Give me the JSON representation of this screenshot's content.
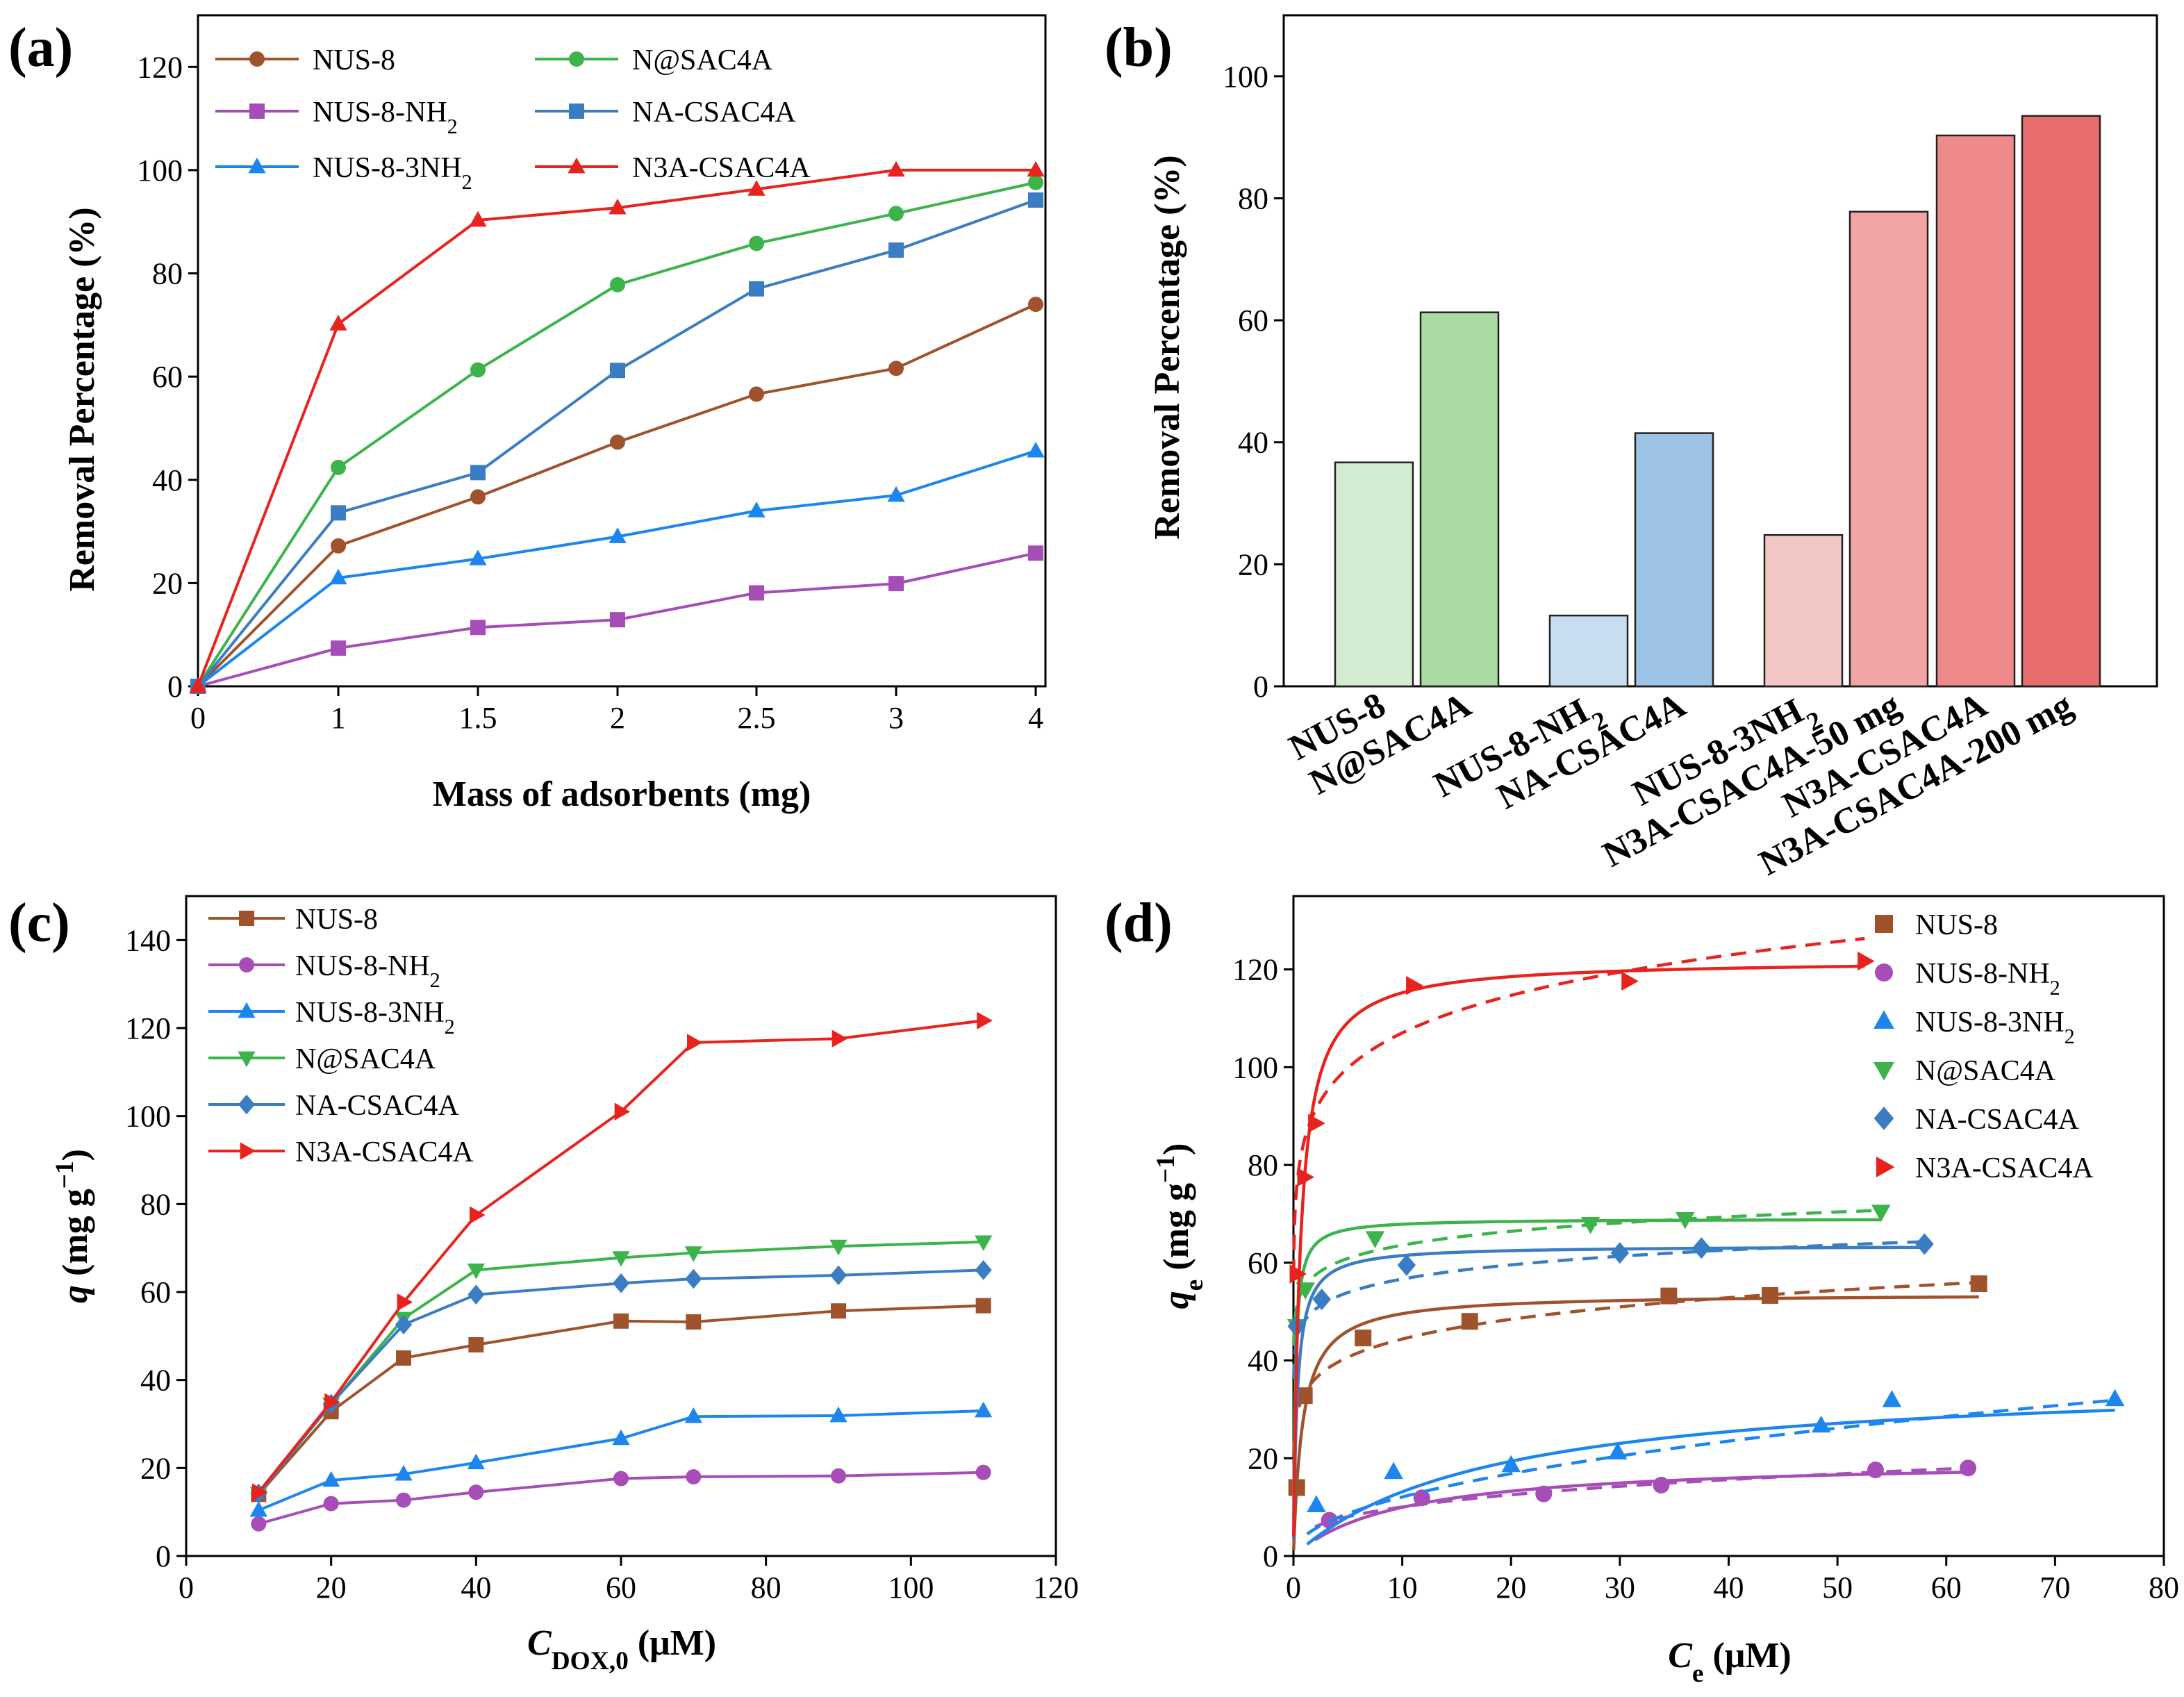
{
  "chart_data": [
    {
      "panel": "(a)",
      "type": "line",
      "xlabel": "Mass of adsorbents (mg)",
      "ylabel": "Removal Percentage (%)",
      "categories": [
        "0",
        "1",
        "1.5",
        "2",
        "2.5",
        "3",
        "4"
      ],
      "yticks": [
        0,
        20,
        40,
        60,
        80,
        100,
        120
      ],
      "ylim": [
        0,
        130
      ],
      "legend_position": "top-left",
      "series": [
        {
          "name": "NUS-8",
          "label": "NUS-8",
          "sub": "",
          "color": "#A0522D",
          "marker": "circle",
          "values": [
            0,
            27.2,
            36.7,
            47.3,
            56.6,
            61.6,
            74.0
          ]
        },
        {
          "name": "NUS-8-NH2",
          "label": "NUS-8-NH",
          "sub": "2",
          "color": "#A64DB8",
          "marker": "square",
          "values": [
            0,
            7.4,
            11.4,
            12.9,
            18.1,
            19.9,
            25.8
          ]
        },
        {
          "name": "NUS-8-3NH2",
          "label": "NUS-8-3NH",
          "sub": "2",
          "color": "#1C86EE",
          "marker": "triangle-up",
          "values": [
            0,
            21.0,
            24.7,
            29.0,
            34.0,
            37.0,
            45.6
          ]
        },
        {
          "name": "N@SAC4A",
          "label": "N@SAC4A",
          "sub": "",
          "color": "#3CB44B",
          "marker": "circle",
          "values": [
            0,
            42.4,
            61.3,
            77.8,
            85.8,
            91.6,
            97.6
          ]
        },
        {
          "name": "NA-CSAC4A",
          "label": "NA-CSAC4A",
          "sub": "",
          "color": "#3A7DC2",
          "marker": "square",
          "values": [
            0,
            33.6,
            41.4,
            61.2,
            77.0,
            84.5,
            94.2
          ]
        },
        {
          "name": "N3A-CSAC4A",
          "label": "N3A-CSAC4A",
          "sub": "",
          "color": "#E8231E",
          "marker": "triangle-up",
          "values": [
            0,
            70.2,
            90.3,
            92.7,
            96.3,
            100.0,
            100.0
          ]
        }
      ]
    },
    {
      "panel": "(b)",
      "type": "bar",
      "xlabel": "",
      "ylabel": "Removal Percentage (%)",
      "yticks": [
        0,
        20,
        40,
        60,
        80,
        100
      ],
      "ylim": [
        0,
        110
      ],
      "bars": [
        {
          "label": "NUS-8",
          "sub": "",
          "value": 36.7,
          "color": "#D3EBD1"
        },
        {
          "label": "N@SAC4A",
          "sub": "",
          "value": 61.3,
          "color": "#A9DBA3"
        },
        {
          "label": "NUS-8-NH",
          "sub": "2",
          "value": 11.6,
          "color": "#C9DDF0"
        },
        {
          "label": "NA-CSAC4A",
          "sub": "",
          "value": 41.5,
          "color": "#9DC3E6"
        },
        {
          "label": "NUS-8-3NH",
          "sub": "2",
          "value": 24.8,
          "color": "#F4C7C7"
        },
        {
          "label": "N3A-CSAC4A-50 mg",
          "sub": "",
          "value": 77.8,
          "color": "#F2A3A3"
        },
        {
          "label": "N3A-CSAC4A",
          "sub": "",
          "value": 90.3,
          "color": "#EE8A8A"
        },
        {
          "label": "N3A-CSAC4A-200 mg",
          "sub": "",
          "value": 93.5,
          "color": "#E86E6E"
        }
      ]
    },
    {
      "panel": "(c)",
      "type": "line",
      "xlabel": "C",
      "xlabel_sub": "DOX,0",
      "xlabel_unit": " (μM)",
      "ylabel": "q",
      "ylabel_unit": " (mg g",
      "ylabel_sup": "−1",
      "ylabel_close": ")",
      "xlim": [
        0,
        120
      ],
      "ylim": [
        0,
        150
      ],
      "xticks": [
        0,
        20,
        40,
        60,
        80,
        100,
        120
      ],
      "yticks": [
        0,
        20,
        40,
        60,
        80,
        100,
        120,
        140
      ],
      "x": [
        10,
        20,
        30,
        40,
        60,
        70,
        90,
        110
      ],
      "legend_position": "top-left",
      "series": [
        {
          "name": "NUS-8",
          "label": "NUS-8",
          "sub": "",
          "color": "#A0522D",
          "marker": "square",
          "values": [
            14.0,
            32.8,
            45.0,
            48.0,
            53.4,
            53.2,
            55.7,
            56.9
          ]
        },
        {
          "name": "NUS-8-NH2",
          "label": "NUS-8-NH",
          "sub": "2",
          "color": "#A64DB8",
          "marker": "circle",
          "values": [
            7.3,
            11.9,
            12.7,
            14.5,
            17.6,
            18.0,
            18.2,
            19.0
          ]
        },
        {
          "name": "NUS-8-3NH2",
          "label": "NUS-8-3NH",
          "sub": "2",
          "color": "#1C86EE",
          "marker": "triangle-up",
          "values": [
            10.4,
            17.2,
            18.6,
            21.2,
            26.7,
            31.7,
            31.9,
            33.0
          ]
        },
        {
          "name": "N@SAC4A",
          "label": "N@SAC4A",
          "sub": "",
          "color": "#3CB44B",
          "marker": "triangle-down",
          "values": [
            14.3,
            34.5,
            54.0,
            65.0,
            67.8,
            68.9,
            70.4,
            71.4
          ]
        },
        {
          "name": "NA-CSAC4A",
          "label": "NA-CSAC4A",
          "sub": "",
          "color": "#3A7DC2",
          "marker": "diamond",
          "values": [
            14.2,
            34.6,
            52.6,
            59.4,
            62.0,
            63.0,
            63.8,
            65.0
          ]
        },
        {
          "name": "N3A-CSAC4A",
          "label": "N3A-CSAC4A",
          "sub": "",
          "color": "#E8231E",
          "marker": "triangle-right",
          "values": [
            14.5,
            35.0,
            57.7,
            77.5,
            101.0,
            116.7,
            117.6,
            121.7
          ]
        }
      ]
    },
    {
      "panel": "(d)",
      "type": "scatter",
      "xlabel": "C",
      "xlabel_sub": "e",
      "xlabel_unit": " (μM)",
      "ylabel": "q",
      "ylabel_sub": "e",
      "ylabel_unit": " (mg g",
      "ylabel_sup": "−1",
      "ylabel_close": ")",
      "xlim": [
        0,
        80
      ],
      "ylim": [
        0,
        135
      ],
      "xticks": [
        0,
        10,
        20,
        30,
        40,
        50,
        60,
        70,
        80
      ],
      "yticks": [
        0,
        20,
        40,
        60,
        80,
        100,
        120
      ],
      "legend_position": "top-right",
      "fit_lines": "solid and dashed fitted curves per series",
      "series": [
        {
          "name": "NUS-8",
          "label": "NUS-8",
          "sub": "",
          "color": "#A0522D",
          "marker": "square",
          "x": [
            0.3,
            1.0,
            6.4,
            16.2,
            34.5,
            43.8,
            63.0
          ],
          "y": [
            14.0,
            32.8,
            44.6,
            48.0,
            53.2,
            53.3,
            55.7
          ],
          "fit_solid": {
            "qmax": 53.7,
            "K": 1.2
          },
          "fit_dashed": {
            "K": 33.2,
            "n": 0.126
          }
        },
        {
          "name": "NUS-8-NH2",
          "label": "NUS-8-NH",
          "sub": "2",
          "color": "#A64DB8",
          "marker": "circle",
          "x": [
            3.3,
            11.8,
            23.0,
            33.8,
            53.5,
            62.0
          ],
          "y": [
            7.3,
            11.9,
            12.7,
            14.5,
            17.6,
            18.0
          ],
          "fit_solid": {
            "qmax": 19.9,
            "K": 0.1
          },
          "fit_dashed": {
            "K": 4.8,
            "n": 0.32
          }
        },
        {
          "name": "NUS-8-3NH2",
          "label": "NUS-8-3NH",
          "sub": "2",
          "color": "#1C86EE",
          "marker": "triangle-up",
          "x": [
            2.1,
            9.2,
            20.0,
            29.8,
            48.5,
            55.0,
            75.5
          ],
          "y": [
            10.4,
            17.2,
            18.6,
            21.2,
            26.7,
            31.9,
            32.1
          ],
          "fit_solid": {
            "qmax": 37.0,
            "K": 0.055
          },
          "fit_dashed": {
            "K": 4.0,
            "n": 0.48
          }
        },
        {
          "name": "N@SAC4A",
          "label": "N@SAC4A",
          "sub": "",
          "color": "#3CB44B",
          "marker": "triangle-down",
          "x": [
            0.3,
            1.1,
            7.5,
            27.3,
            36.0,
            54.0
          ],
          "y": [
            47.0,
            54.5,
            65.0,
            67.9,
            68.9,
            70.4
          ],
          "fit_solid": {
            "qmax": 69.0,
            "K": 6.0
          },
          "fit_dashed": {
            "K": 55.0,
            "n": 0.063
          }
        },
        {
          "name": "NA-CSAC4A",
          "label": "NA-CSAC4A",
          "sub": "",
          "color": "#3A7DC2",
          "marker": "diamond",
          "x": [
            0.3,
            2.6,
            10.4,
            30.0,
            37.5,
            58.0
          ],
          "y": [
            47.0,
            52.5,
            59.5,
            62.0,
            63.0,
            63.8
          ],
          "fit_solid": {
            "qmax": 63.5,
            "K": 3.0
          },
          "fit_dashed": {
            "K": 48.0,
            "n": 0.072
          }
        },
        {
          "name": "N3A-CSAC4A",
          "label": "N3A-CSAC4A",
          "sub": "",
          "color": "#E8231E",
          "marker": "triangle-right",
          "x": [
            0.3,
            1.0,
            2.0,
            11.0,
            30.8,
            52.5
          ],
          "y": [
            57.7,
            77.5,
            88.5,
            116.7,
            117.6,
            121.7
          ],
          "fit_solid": {
            "qmax": 122.0,
            "K": 1.7
          },
          "fit_dashed": {
            "K": 85.0,
            "n": 0.1
          }
        }
      ]
    }
  ]
}
